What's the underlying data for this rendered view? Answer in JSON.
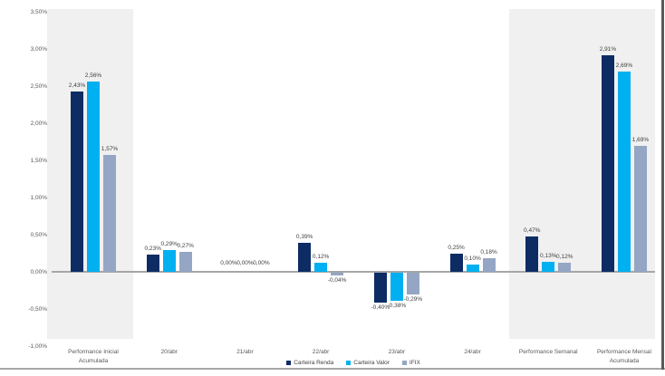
{
  "chart_data": {
    "type": "bar",
    "title": "",
    "xlabel": "",
    "ylabel": "",
    "grid": false,
    "categories": [
      {
        "lines": [
          "Performance Inicial",
          "Acumulada"
        ]
      },
      {
        "lines": [
          "20/abr"
        ]
      },
      {
        "lines": [
          "21/abr"
        ]
      },
      {
        "lines": [
          "22/abr"
        ]
      },
      {
        "lines": [
          "23/abr"
        ]
      },
      {
        "lines": [
          "24/abr"
        ]
      },
      {
        "lines": [
          "Performance Semanal"
        ]
      },
      {
        "lines": [
          "Performance Mensal",
          "Acumulada"
        ]
      }
    ],
    "series": [
      {
        "name": "Carteira Renda",
        "color": "#0D2C64",
        "values": [
          2.43,
          0.23,
          0.0,
          0.39,
          -0.4,
          0.25,
          0.47,
          2.91
        ]
      },
      {
        "name": "Carteira Valor",
        "color": "#00B0F0",
        "values": [
          2.56,
          0.29,
          0.0,
          0.12,
          -0.38,
          0.1,
          0.13,
          2.69
        ]
      },
      {
        "name": "IFIX",
        "color": "#94A6C4",
        "values": [
          1.57,
          0.27,
          0.0,
          -0.04,
          -0.29,
          0.18,
          0.12,
          1.69
        ]
      }
    ],
    "data_labels": [
      [
        "2,43%",
        "0,23%",
        "0,00%",
        "0,39%",
        "-0,40%",
        "0,25%",
        "0,47%",
        "2,91%"
      ],
      [
        "2,56%",
        "0,29%",
        "0,00%",
        "0,12%",
        "-0,38%",
        "0,10%",
        "0,13%",
        "2,69%"
      ],
      [
        "1,57%",
        "0,27%",
        "0,00%",
        "-0,04%",
        "-0,29%",
        "0,18%",
        "0,12%",
        "1,69%"
      ]
    ],
    "y_axis": {
      "min": -1.0,
      "max": 3.5,
      "step": 0.5,
      "tick_labels": [
        "3,50%",
        "3,00%",
        "2,50%",
        "2,00%",
        "1,50%",
        "1,00%",
        "0,50%",
        "0,00%",
        "-0,50%",
        "-1,00%"
      ]
    },
    "legend": {
      "position": "bottom",
      "items": [
        "Carteira Renda",
        "Carteira Valor",
        "IFIX"
      ]
    },
    "highlighted_regions": [
      "Performance Inicial Acumulada",
      "Performance Semanal e Performance Mensal Acumulada"
    ],
    "colors": {
      "highlight_bg": "#F0F0F0",
      "axis_line": "#A6A6A6",
      "bottom_rule": "#A6A6A6",
      "right_border": "#595959",
      "tick_text": "#595959",
      "category_text": "#595959",
      "data_label_text": "#404040",
      "legend_text": "#404040"
    }
  }
}
